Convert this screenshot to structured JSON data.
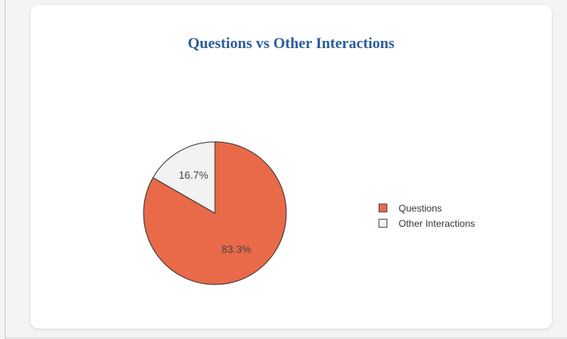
{
  "chart_data": {
    "type": "pie",
    "title": "Questions vs Other Interactions",
    "categories": [
      "Questions",
      "Other Interactions"
    ],
    "values": [
      83.3,
      16.7
    ],
    "labels": [
      "83.3%",
      "16.7%"
    ],
    "colors": [
      "#e96a49",
      "#f2f2f2"
    ],
    "legend_position": "right"
  }
}
